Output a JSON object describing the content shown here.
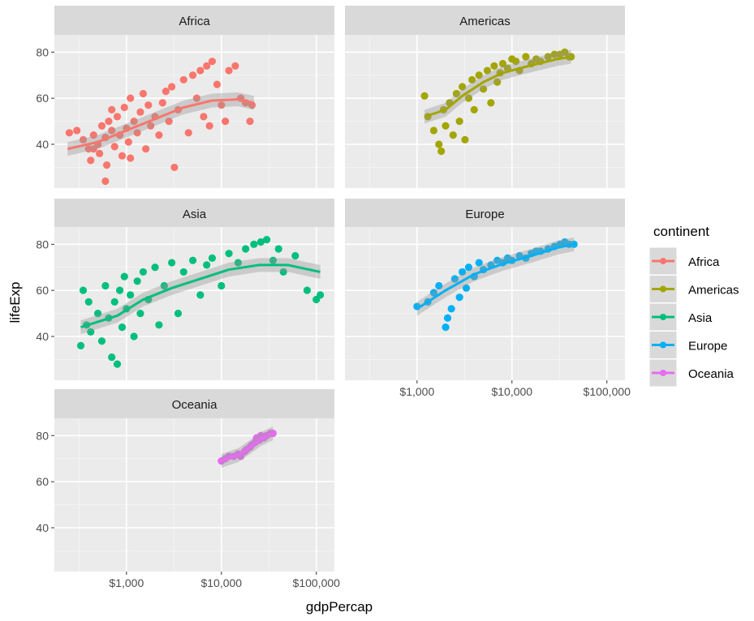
{
  "chart_data": {
    "type": "scatter",
    "facet_by": "continent",
    "xlabel": "gdpPercap",
    "ylabel": "lifeExp",
    "x_scale": "log10",
    "xlim": [
      174,
      155000
    ],
    "ylim": [
      21,
      87.5
    ],
    "x_ticks": [
      {
        "value": 1000,
        "label": "$1,000"
      },
      {
        "value": 10000,
        "label": "$10,000"
      },
      {
        "value": 100000,
        "label": "$100,000"
      }
    ],
    "y_ticks": [
      {
        "value": 40,
        "label": "40"
      },
      {
        "value": 60,
        "label": "60"
      },
      {
        "value": 80,
        "label": "80"
      }
    ],
    "grid": true,
    "smooth": "loess with confidence band",
    "legend": {
      "title": "continent",
      "placement": "right"
    },
    "series": [
      {
        "name": "Africa",
        "color": "#F8766D",
        "points": [
          [
            250,
            45
          ],
          [
            300,
            46
          ],
          [
            350,
            42
          ],
          [
            400,
            38
          ],
          [
            420,
            33
          ],
          [
            450,
            44
          ],
          [
            500,
            40
          ],
          [
            520,
            36
          ],
          [
            550,
            48
          ],
          [
            600,
            43
          ],
          [
            620,
            31
          ],
          [
            650,
            50
          ],
          [
            700,
            46
          ],
          [
            750,
            39
          ],
          [
            800,
            52
          ],
          [
            850,
            44
          ],
          [
            900,
            35
          ],
          [
            950,
            56
          ],
          [
            1000,
            47
          ],
          [
            1050,
            41
          ],
          [
            1100,
            60
          ],
          [
            1200,
            50
          ],
          [
            1300,
            45
          ],
          [
            1400,
            54
          ],
          [
            1500,
            62
          ],
          [
            1600,
            38
          ],
          [
            1700,
            57
          ],
          [
            1800,
            48
          ],
          [
            2000,
            52
          ],
          [
            2200,
            44
          ],
          [
            2400,
            58
          ],
          [
            2600,
            63
          ],
          [
            2800,
            50
          ],
          [
            3000,
            65
          ],
          [
            3200,
            30
          ],
          [
            3500,
            55
          ],
          [
            4000,
            68
          ],
          [
            4500,
            45
          ],
          [
            5000,
            70
          ],
          [
            5500,
            60
          ],
          [
            6000,
            72
          ],
          [
            6500,
            52
          ],
          [
            7000,
            74
          ],
          [
            7500,
            48
          ],
          [
            8000,
            76
          ],
          [
            9000,
            66
          ],
          [
            10000,
            57
          ],
          [
            11000,
            50
          ],
          [
            12000,
            72
          ],
          [
            14000,
            74
          ],
          [
            16000,
            60
          ],
          [
            18000,
            58
          ],
          [
            20000,
            50
          ],
          [
            21000,
            57
          ],
          [
            600,
            24
          ],
          [
            450,
            38
          ],
          [
            700,
            55
          ],
          [
            1100,
            34
          ]
        ],
        "smooth": [
          [
            240,
            38
          ],
          [
            500,
            41
          ],
          [
            1000,
            46
          ],
          [
            2000,
            51
          ],
          [
            4000,
            56
          ],
          [
            8000,
            59
          ],
          [
            15000,
            59.5
          ],
          [
            22000,
            58
          ]
        ]
      },
      {
        "name": "Americas",
        "color": "#A3A500",
        "points": [
          [
            1200,
            61
          ],
          [
            1300,
            52
          ],
          [
            1500,
            46
          ],
          [
            1700,
            40
          ],
          [
            1800,
            37
          ],
          [
            1900,
            55
          ],
          [
            2000,
            48
          ],
          [
            2200,
            58
          ],
          [
            2400,
            44
          ],
          [
            2600,
            62
          ],
          [
            2800,
            50
          ],
          [
            3000,
            65
          ],
          [
            3200,
            42
          ],
          [
            3500,
            60
          ],
          [
            3800,
            68
          ],
          [
            4000,
            55
          ],
          [
            4500,
            70
          ],
          [
            5000,
            64
          ],
          [
            5500,
            72
          ],
          [
            6000,
            58
          ],
          [
            6500,
            74
          ],
          [
            7000,
            67
          ],
          [
            7500,
            71
          ],
          [
            8000,
            75
          ],
          [
            9000,
            73
          ],
          [
            10000,
            77
          ],
          [
            11000,
            76
          ],
          [
            12000,
            72
          ],
          [
            14000,
            78
          ],
          [
            16000,
            75
          ],
          [
            18000,
            77
          ],
          [
            20000,
            76
          ],
          [
            24000,
            78
          ],
          [
            28000,
            79
          ],
          [
            32000,
            79
          ],
          [
            36000,
            80
          ],
          [
            40000,
            78
          ],
          [
            42000,
            78
          ]
        ],
        "smooth": [
          [
            1200,
            52
          ],
          [
            2000,
            55
          ],
          [
            3000,
            61
          ],
          [
            5000,
            67
          ],
          [
            8000,
            71
          ],
          [
            15000,
            74
          ],
          [
            30000,
            77
          ],
          [
            42000,
            78
          ]
        ]
      },
      {
        "name": "Asia",
        "color": "#00BF7D",
        "points": [
          [
            330,
            36
          ],
          [
            350,
            60
          ],
          [
            380,
            45
          ],
          [
            400,
            55
          ],
          [
            420,
            42
          ],
          [
            500,
            50
          ],
          [
            550,
            38
          ],
          [
            600,
            62
          ],
          [
            650,
            48
          ],
          [
            700,
            31
          ],
          [
            750,
            55
          ],
          [
            800,
            28
          ],
          [
            850,
            60
          ],
          [
            900,
            44
          ],
          [
            950,
            66
          ],
          [
            1000,
            52
          ],
          [
            1100,
            58
          ],
          [
            1200,
            40
          ],
          [
            1300,
            64
          ],
          [
            1400,
            50
          ],
          [
            1500,
            68
          ],
          [
            1700,
            56
          ],
          [
            2000,
            70
          ],
          [
            2200,
            45
          ],
          [
            2500,
            62
          ],
          [
            3000,
            72
          ],
          [
            3500,
            50
          ],
          [
            4000,
            68
          ],
          [
            5000,
            73
          ],
          [
            6000,
            58
          ],
          [
            7000,
            71
          ],
          [
            8000,
            74
          ],
          [
            10000,
            62
          ],
          [
            12000,
            76
          ],
          [
            15000,
            72
          ],
          [
            18000,
            78
          ],
          [
            22000,
            80
          ],
          [
            26000,
            81
          ],
          [
            30000,
            82
          ],
          [
            35000,
            73
          ],
          [
            40000,
            78
          ],
          [
            45000,
            68
          ],
          [
            60000,
            75
          ],
          [
            80000,
            60
          ],
          [
            100000,
            56
          ],
          [
            110000,
            58
          ]
        ],
        "smooth": [
          [
            330,
            44
          ],
          [
            800,
            49
          ],
          [
            1500,
            56
          ],
          [
            3000,
            61
          ],
          [
            6000,
            65
          ],
          [
            12000,
            69
          ],
          [
            25000,
            71
          ],
          [
            50000,
            71
          ],
          [
            110000,
            68
          ]
        ]
      },
      {
        "name": "Europe",
        "color": "#00B0F6",
        "points": [
          [
            1000,
            53
          ],
          [
            1300,
            55
          ],
          [
            1500,
            59
          ],
          [
            1700,
            62
          ],
          [
            2000,
            44
          ],
          [
            2100,
            48
          ],
          [
            2300,
            52
          ],
          [
            2500,
            65
          ],
          [
            2800,
            57
          ],
          [
            3000,
            68
          ],
          [
            3300,
            61
          ],
          [
            3500,
            70
          ],
          [
            4000,
            66
          ],
          [
            4500,
            72
          ],
          [
            5000,
            69
          ],
          [
            6000,
            71
          ],
          [
            7000,
            73
          ],
          [
            8000,
            72
          ],
          [
            9000,
            74
          ],
          [
            10000,
            73
          ],
          [
            12000,
            75
          ],
          [
            14000,
            74
          ],
          [
            16000,
            76
          ],
          [
            18000,
            77
          ],
          [
            20000,
            77
          ],
          [
            24000,
            78
          ],
          [
            28000,
            79
          ],
          [
            32000,
            80
          ],
          [
            36000,
            81
          ],
          [
            40000,
            80
          ],
          [
            45000,
            80
          ]
        ],
        "smooth": [
          [
            1000,
            52
          ],
          [
            2000,
            60
          ],
          [
            4000,
            67
          ],
          [
            8000,
            71.5
          ],
          [
            16000,
            75
          ],
          [
            30000,
            78.5
          ],
          [
            45000,
            80
          ]
        ]
      },
      {
        "name": "Oceania",
        "color": "#E76BF3",
        "points": [
          [
            10000,
            69
          ],
          [
            11000,
            70
          ],
          [
            12000,
            71
          ],
          [
            13500,
            71
          ],
          [
            15000,
            72
          ],
          [
            16000,
            71
          ],
          [
            17500,
            73
          ],
          [
            18500,
            74
          ],
          [
            20000,
            75
          ],
          [
            21000,
            76
          ],
          [
            22500,
            77
          ],
          [
            23500,
            79
          ],
          [
            25000,
            78
          ],
          [
            26000,
            80
          ],
          [
            28000,
            79
          ],
          [
            30000,
            80
          ],
          [
            33000,
            81
          ],
          [
            35000,
            81
          ]
        ],
        "smooth": [
          [
            10000,
            69
          ],
          [
            15000,
            71.5
          ],
          [
            20000,
            75
          ],
          [
            26000,
            78.5
          ],
          [
            35000,
            81
          ]
        ]
      }
    ]
  }
}
